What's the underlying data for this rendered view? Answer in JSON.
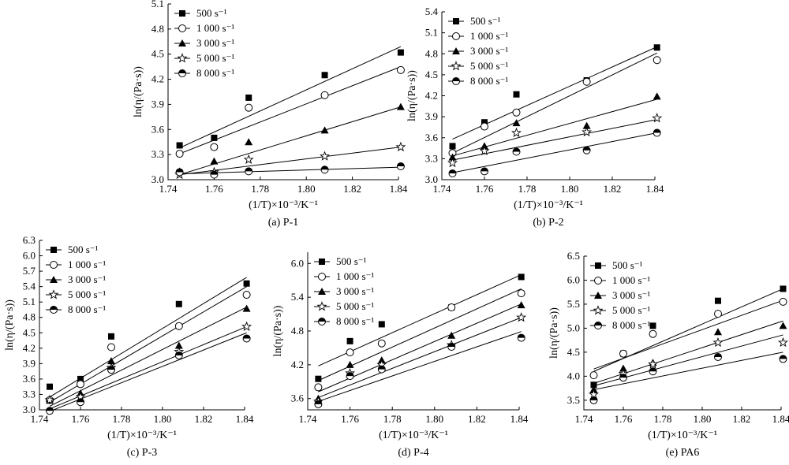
{
  "chart_data": [
    {
      "type": "scatter",
      "caption": "(a) P-1",
      "xlabel": "(1/T)×10⁻³/K⁻¹",
      "ylabel": "ln(η/(Pa·s))",
      "xlim": [
        1.74,
        1.84
      ],
      "ylim": [
        3.0,
        5.1
      ],
      "xticks": [
        "1.74",
        "1.76",
        "1.78",
        "1.80",
        "1.82",
        "1.84"
      ],
      "yticks": [
        "3.0",
        "3.3",
        "3.6",
        "3.9",
        "4.2",
        "4.5",
        "4.8",
        "5.1"
      ],
      "legend": "top-left",
      "x": [
        1.745,
        1.76,
        1.775,
        1.808,
        1.841
      ],
      "series": [
        {
          "name": "500 s⁻¹",
          "marker": "square",
          "values": [
            3.41,
            3.5,
            3.98,
            4.25,
            4.52
          ],
          "fit": [
            3.38,
            4.59
          ]
        },
        {
          "name": "1 000 s⁻¹",
          "marker": "circle",
          "values": [
            3.31,
            3.39,
            3.86,
            4.01,
            4.31
          ],
          "fit": [
            3.31,
            4.35
          ]
        },
        {
          "name": "3 000 s⁻¹",
          "marker": "triangle",
          "values": [
            3.1,
            3.22,
            3.45,
            3.59,
            3.87
          ],
          "fit": [
            3.06,
            3.87
          ]
        },
        {
          "name": "5 000 s⁻¹",
          "marker": "star",
          "values": [
            3.06,
            3.09,
            3.24,
            3.28,
            3.39
          ],
          "fit": [
            3.06,
            3.39
          ]
        },
        {
          "name": "8 000 s⁻¹",
          "marker": "halfcircle",
          "values": [
            3.09,
            3.06,
            3.1,
            3.12,
            3.16
          ],
          "fit": [
            3.07,
            3.15
          ]
        }
      ]
    },
    {
      "type": "scatter",
      "caption": "(b) P-2",
      "xlabel": "(1/T)×10⁻³/K⁻¹",
      "ylabel": "ln(η/(Pa·s))",
      "xlim": [
        1.74,
        1.84
      ],
      "ylim": [
        3.0,
        5.4
      ],
      "xticks": [
        "1.74",
        "1.76",
        "1.78",
        "1.80",
        "1.82",
        "1.84"
      ],
      "yticks": [
        "3.0",
        "3.3",
        "3.6",
        "3.9",
        "4.2",
        "4.5",
        "4.8",
        "5.1",
        "5.4"
      ],
      "legend": "top-left",
      "x": [
        1.745,
        1.76,
        1.775,
        1.808,
        1.841
      ],
      "series": [
        {
          "name": "500 s⁻¹",
          "marker": "square",
          "values": [
            3.48,
            3.82,
            4.22,
            4.42,
            4.89
          ],
          "fit": [
            3.58,
            4.9
          ]
        },
        {
          "name": "1 000 s⁻¹",
          "marker": "circle",
          "values": [
            3.38,
            3.76,
            3.96,
            4.4,
            4.71
          ],
          "fit": [
            3.38,
            4.81
          ]
        },
        {
          "name": "3 000 s⁻¹",
          "marker": "triangle",
          "values": [
            3.32,
            3.48,
            3.81,
            3.77,
            4.19
          ],
          "fit": [
            3.34,
            4.15
          ]
        },
        {
          "name": "5 000 s⁻¹",
          "marker": "star",
          "values": [
            3.24,
            3.41,
            3.67,
            3.68,
            3.88
          ],
          "fit": [
            3.28,
            3.86
          ]
        },
        {
          "name": "8 000 s⁻¹",
          "marker": "halfcircle",
          "values": [
            3.09,
            3.12,
            3.4,
            3.42,
            3.67
          ],
          "fit": [
            3.1,
            3.67
          ]
        }
      ]
    },
    {
      "type": "scatter",
      "caption": "(c) P-3",
      "xlabel": "(1/T)×10⁻³/K⁻¹",
      "ylabel": "ln(η/(Pa·s))",
      "xlim": [
        1.74,
        1.84
      ],
      "ylim": [
        3.0,
        6.3
      ],
      "xticks": [
        "1.74",
        "1.76",
        "1.78",
        "1.80",
        "1.82",
        "1.84"
      ],
      "yticks": [
        "3.0",
        "3.3",
        "3.6",
        "3.9",
        "4.2",
        "4.5",
        "4.8",
        "5.1",
        "5.4",
        "5.7",
        "6.0",
        "6.3"
      ],
      "legend": "top-left",
      "x": [
        1.745,
        1.76,
        1.775,
        1.808,
        1.841
      ],
      "series": [
        {
          "name": "500 s⁻¹",
          "marker": "square",
          "values": [
            3.45,
            3.6,
            4.43,
            5.06,
            5.46
          ],
          "fit": [
            3.25,
            5.58
          ]
        },
        {
          "name": "1 000 s⁻¹",
          "marker": "circle",
          "values": [
            3.19,
            3.5,
            4.22,
            4.63,
            5.24
          ],
          "fit": [
            3.15,
            5.4
          ]
        },
        {
          "name": "3 000 s⁻¹",
          "marker": "triangle",
          "values": [
            3.19,
            3.32,
            3.95,
            4.25,
            4.97
          ],
          "fit": [
            3.07,
            5.0
          ]
        },
        {
          "name": "5 000 s⁻¹",
          "marker": "star",
          "values": [
            3.19,
            3.25,
            3.82,
            4.13,
            4.62
          ],
          "fit": [
            3.02,
            4.62
          ]
        },
        {
          "name": "8 000 s⁻¹",
          "marker": "halfcircle",
          "values": [
            2.98,
            3.15,
            3.78,
            4.06,
            4.39
          ],
          "fit": [
            2.97,
            4.5
          ]
        }
      ]
    },
    {
      "type": "scatter",
      "caption": "(d) P-4",
      "xlabel": "(1/T)×10⁻³/K⁻¹",
      "ylabel": "ln(η/(Pa·s))",
      "xlim": [
        1.74,
        1.84
      ],
      "ylim": [
        3.4,
        6.2
      ],
      "xticks": [
        "1.74",
        "1.76",
        "1.78",
        "1.80",
        "1.82",
        "1.84"
      ],
      "yticks": [
        "3.6",
        "4.2",
        "4.8",
        "5.4",
        "6.0"
      ],
      "legend": "top-left",
      "x": [
        1.745,
        1.76,
        1.775,
        1.808,
        1.841
      ],
      "series": [
        {
          "name": "500 s⁻¹",
          "marker": "square",
          "values": [
            3.95,
            4.62,
            4.92,
            5.22,
            5.76
          ],
          "fit": [
            4.18,
            5.8
          ]
        },
        {
          "name": "1 000 s⁻¹",
          "marker": "circle",
          "values": [
            3.8,
            4.42,
            4.58,
            5.22,
            5.47
          ],
          "fit": [
            3.92,
            5.55
          ]
        },
        {
          "name": "3 000 s⁻¹",
          "marker": "triangle",
          "values": [
            3.6,
            4.2,
            4.28,
            4.72,
            5.26
          ],
          "fit": [
            3.72,
            5.28
          ]
        },
        {
          "name": "5 000 s⁻¹",
          "marker": "star",
          "values": [
            3.55,
            4.05,
            4.2,
            4.55,
            5.04
          ],
          "fit": [
            3.62,
            5.04
          ]
        },
        {
          "name": "8 000 s⁻¹",
          "marker": "halfcircle",
          "values": [
            3.5,
            4.0,
            4.12,
            4.52,
            4.68
          ],
          "fit": [
            3.55,
            4.79
          ]
        }
      ]
    },
    {
      "type": "scatter",
      "caption": "(e) PA6",
      "xlabel": "(1/T)×10⁻³/K⁻¹",
      "ylabel": "ln(η/(Pa·s))",
      "xlim": [
        1.74,
        1.84
      ],
      "ylim": [
        3.3,
        6.5
      ],
      "xticks": [
        "1.74",
        "1.76",
        "1.78",
        "1.80",
        "1.82",
        "1.84"
      ],
      "yticks": [
        "3.5",
        "4.0",
        "4.5",
        "5.0",
        "5.5",
        "6.0",
        "6.5"
      ],
      "legend": "top-left",
      "x": [
        1.745,
        1.76,
        1.775,
        1.808,
        1.841
      ],
      "series": [
        {
          "name": "500 s⁻¹",
          "marker": "square",
          "values": [
            3.82,
            4.47,
            5.05,
            5.57,
            5.82
          ],
          "fit": [
            4.1,
            5.82
          ]
        },
        {
          "name": "1 000 s⁻¹",
          "marker": "circle",
          "values": [
            4.02,
            4.47,
            4.88,
            5.3,
            5.55
          ],
          "fit": [
            4.15,
            5.58
          ]
        },
        {
          "name": "3 000 s⁻¹",
          "marker": "triangle",
          "values": [
            3.72,
            4.16,
            4.28,
            4.92,
            5.05
          ],
          "fit": [
            3.85,
            5.15
          ]
        },
        {
          "name": "5 000 s⁻¹",
          "marker": "star",
          "values": [
            3.62,
            4.05,
            4.25,
            4.7,
            4.7
          ],
          "fit": [
            3.8,
            4.86
          ]
        },
        {
          "name": "8 000 s⁻¹",
          "marker": "halfcircle",
          "values": [
            3.5,
            3.97,
            4.1,
            4.4,
            4.36
          ],
          "fit": [
            3.72,
            4.5
          ]
        }
      ]
    }
  ]
}
